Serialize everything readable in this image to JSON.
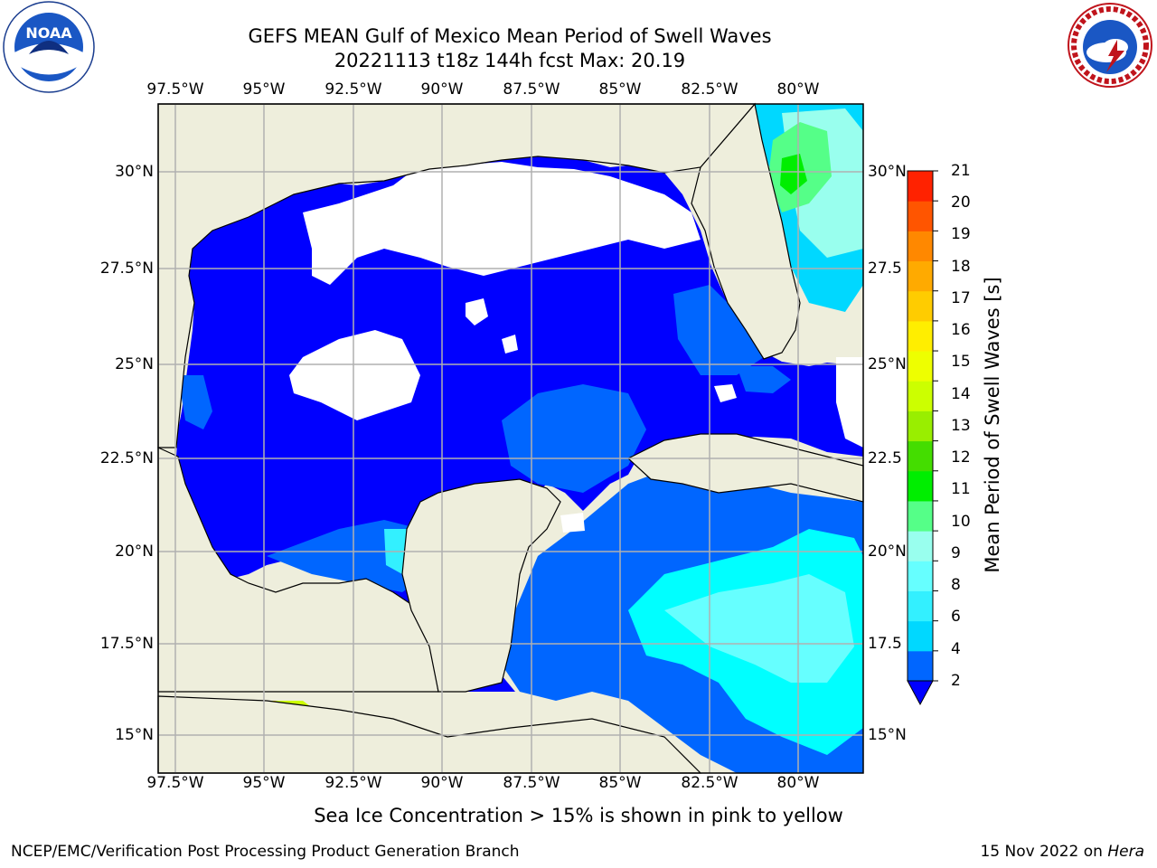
{
  "title": {
    "line1": "GEFS MEAN Gulf of Mexico Mean Period of Swell Waves",
    "line2": "20221113 t18z 144h fcst   Max: 20.19"
  },
  "map": {
    "lon_labels": [
      "97.5°W",
      "95°W",
      "92.5°W",
      "90°W",
      "87.5°W",
      "85°W",
      "82.5°W",
      "80°W"
    ],
    "lat_labels_left": [
      "30°N",
      "27.5°N",
      "25°N",
      "22.5°N",
      "20°N",
      "17.5°N",
      "15°N"
    ],
    "lat_labels_right": [
      "30°N",
      "27.5",
      "25°N",
      "22.5",
      "20°N",
      "17.5",
      "15°N"
    ],
    "colors": {
      "land": "#eeeedc",
      "missing": "#ffffff",
      "grid": "#b0b0b0"
    }
  },
  "colorbar": {
    "label": "Mean Period of Swell Waves [s]",
    "ticks": [
      "2",
      "4",
      "6",
      "8",
      "9",
      "10",
      "11",
      "12",
      "13",
      "14",
      "15",
      "16",
      "17",
      "18",
      "19",
      "20",
      "21"
    ],
    "colors": [
      "#0066ff",
      "#00d8ff",
      "#33f0ff",
      "#66ffff",
      "#99ffee",
      "#55ff88",
      "#00ee00",
      "#44dd00",
      "#99ee00",
      "#ccff00",
      "#eeff00",
      "#ffee00",
      "#ffcc00",
      "#ffaa00",
      "#ff8800",
      "#ff5500",
      "#ff2200",
      "#ff0000"
    ],
    "under_color": "#0000ff"
  },
  "footnote": "Sea Ice Concentration > 15% is shown in pink to yellow",
  "credit": "NCEP/EMC/Verification Post Processing Product Generation Branch",
  "date_stamp": {
    "date": "15 Nov 2022 on",
    "machine": "Hera"
  },
  "logos": {
    "left": "NOAA",
    "right_text": "NATIONAL WEATHER SERVICE"
  }
}
